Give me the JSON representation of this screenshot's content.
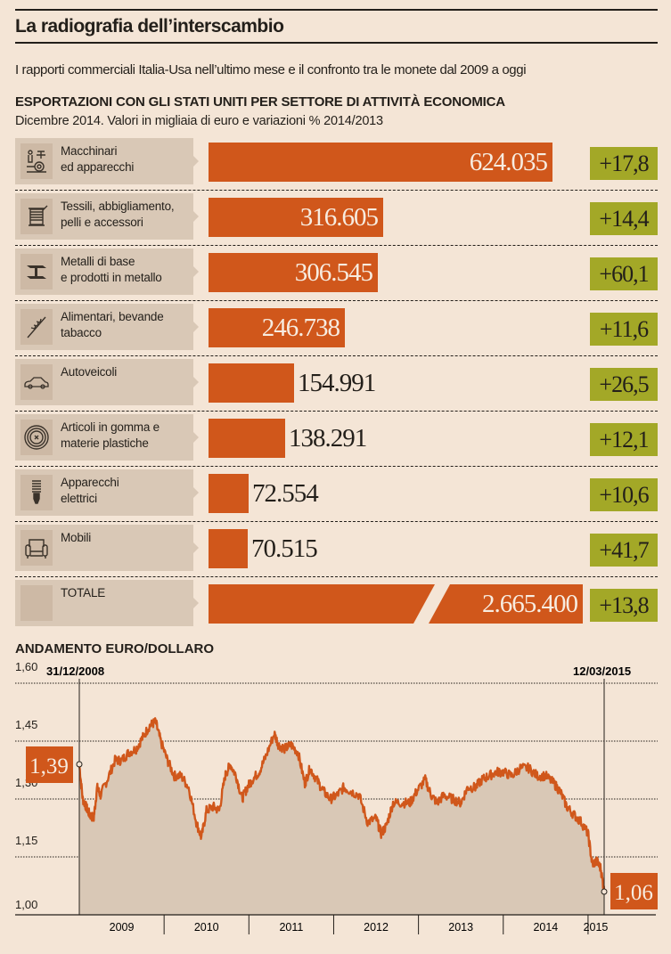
{
  "header": {
    "title": "La radiografia dell’interscambio",
    "subtitle": "I rapporti commerciali Italia-Usa nell’ultimo mese e il confronto tra le monete dal 2009 a oggi"
  },
  "exports": {
    "title": "ESPORTAZIONI CON GLI STATI UNITI PER SETTORE DI ATTIVITÀ ECONOMICA",
    "subtitle": "Dicembre 2014. Valori in migliaia di euro e  variazioni % 2014/2013",
    "colors": {
      "bar": "#d0571b",
      "change": "#a3a827"
    },
    "rows": [
      {
        "label": "Macchinari\ned apparecchi",
        "icon": "machinery-icon",
        "value": 624035,
        "value_label": "624.035",
        "change": "+17,8"
      },
      {
        "label": "Tessili, abbigliamento,\npelli e accessori",
        "icon": "thread-spool-icon",
        "value": 316605,
        "value_label": "316.605",
        "change": "+14,4"
      },
      {
        "label": "Metalli di base\ne prodotti in metallo",
        "icon": "steel-beam-icon",
        "value": 306545,
        "value_label": "306.545",
        "change": "+60,1"
      },
      {
        "label": "Alimentari, bevande\ntabacco",
        "icon": "wheat-icon",
        "value": 246738,
        "value_label": "246.738",
        "change": "+11,6"
      },
      {
        "label": "Autoveicoli",
        "icon": "car-icon",
        "value": 154991,
        "value_label": "154.991",
        "change": "+26,5"
      },
      {
        "label": "Articoli in gomma e\nmaterie plastiche",
        "icon": "tire-icon",
        "value": 138291,
        "value_label": "138.291",
        "change": "+12,1"
      },
      {
        "label": "Apparecchi\nelettrici",
        "icon": "light-bulb-icon",
        "value": 72554,
        "value_label": "72.554",
        "change": "+10,6"
      },
      {
        "label": "Mobili",
        "icon": "armchair-icon",
        "value": 70515,
        "value_label": "70.515",
        "change": "+41,7"
      }
    ],
    "total": {
      "label": "TOTALE",
      "value": 2665400,
      "value_label": "2.665.400",
      "change": "+13,8"
    }
  },
  "chart_data": {
    "type": "area",
    "title": "ANDAMENTO EURO/DOLLARO",
    "start_label": "31/12/2008",
    "end_label": "12/03/2015",
    "start_value_label": "1,39",
    "end_value_label": "1,06",
    "ylim": [
      1.0,
      1.6
    ],
    "yticks": [
      {
        "v": 1.6,
        "label": "1,60"
      },
      {
        "v": 1.45,
        "label": "1,45"
      },
      {
        "v": 1.3,
        "label": "1,30"
      },
      {
        "v": 1.15,
        "label": "1,15"
      },
      {
        "v": 1.0,
        "label": "1,00"
      }
    ],
    "xlim": [
      2009.0,
      2015.19
    ],
    "xticks": [
      "2009",
      "2010",
      "2011",
      "2012",
      "2013",
      "2014",
      "2015"
    ],
    "colors": {
      "line": "#d0571b",
      "fill": "#d9c8b6"
    },
    "x": [
      2009.0,
      2009.04,
      2009.08,
      2009.12,
      2009.17,
      2009.21,
      2009.25,
      2009.33,
      2009.42,
      2009.5,
      2009.58,
      2009.67,
      2009.75,
      2009.83,
      2009.9,
      2009.96,
      2010.04,
      2010.12,
      2010.2,
      2010.29,
      2010.38,
      2010.44,
      2010.5,
      2010.58,
      2010.65,
      2010.72,
      2010.78,
      2010.85,
      2010.92,
      2010.98,
      2011.04,
      2011.12,
      2011.2,
      2011.3,
      2011.35,
      2011.42,
      2011.5,
      2011.58,
      2011.66,
      2011.72,
      2011.8,
      2011.88,
      2011.96,
      2012.04,
      2012.12,
      2012.2,
      2012.3,
      2012.4,
      2012.5,
      2012.56,
      2012.62,
      2012.7,
      2012.8,
      2012.9,
      2012.98,
      2013.08,
      2013.15,
      2013.22,
      2013.3,
      2013.4,
      2013.5,
      2013.58,
      2013.67,
      2013.75,
      2013.83,
      2013.92,
      2014.0,
      2014.1,
      2014.2,
      2014.3,
      2014.4,
      2014.5,
      2014.6,
      2014.67,
      2014.75,
      2014.83,
      2014.92,
      2015.0,
      2015.05,
      2015.1,
      2015.15,
      2015.19
    ],
    "y": [
      1.39,
      1.3,
      1.28,
      1.26,
      1.25,
      1.33,
      1.31,
      1.35,
      1.4,
      1.4,
      1.42,
      1.43,
      1.46,
      1.49,
      1.5,
      1.45,
      1.4,
      1.36,
      1.36,
      1.33,
      1.24,
      1.2,
      1.27,
      1.28,
      1.27,
      1.36,
      1.39,
      1.36,
      1.3,
      1.33,
      1.35,
      1.37,
      1.41,
      1.47,
      1.44,
      1.43,
      1.44,
      1.42,
      1.34,
      1.38,
      1.35,
      1.32,
      1.3,
      1.31,
      1.33,
      1.32,
      1.31,
      1.24,
      1.25,
      1.21,
      1.23,
      1.29,
      1.29,
      1.29,
      1.32,
      1.35,
      1.31,
      1.29,
      1.31,
      1.3,
      1.29,
      1.33,
      1.33,
      1.35,
      1.36,
      1.37,
      1.37,
      1.36,
      1.38,
      1.38,
      1.36,
      1.36,
      1.34,
      1.32,
      1.28,
      1.26,
      1.24,
      1.21,
      1.13,
      1.14,
      1.12,
      1.06
    ]
  }
}
